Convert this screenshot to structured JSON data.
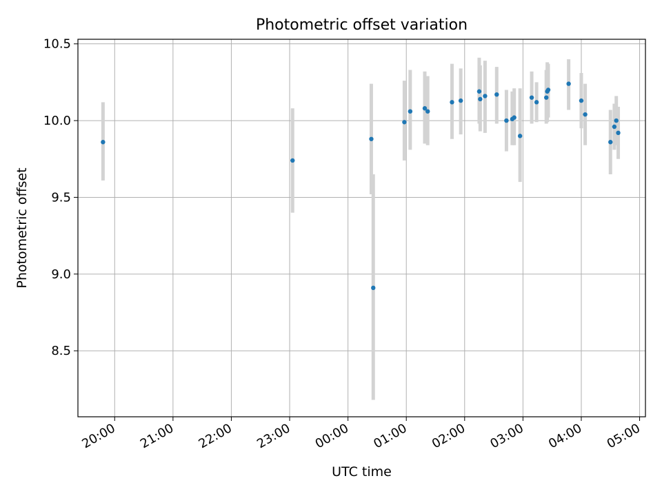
{
  "chart_data": {
    "type": "scatter",
    "title": "Photometric offset variation",
    "xlabel": "UTC time",
    "ylabel": "Photometric offset",
    "x_ticks": [
      "20:00",
      "21:00",
      "22:00",
      "23:00",
      "00:00",
      "01:00",
      "02:00",
      "03:00",
      "04:00",
      "05:00"
    ],
    "y_ticks": [
      "8.5",
      "9.0",
      "9.5",
      "10.0",
      "10.5"
    ],
    "xlim_hours": [
      19.37,
      29.1
    ],
    "ylim": [
      8.07,
      10.53
    ],
    "grid": true,
    "colors": {
      "points": "#1f77b4",
      "errorbars": "#d3d3d3",
      "grid": "#b0b0b0"
    },
    "points": [
      {
        "time": "19:48",
        "y": 9.86,
        "err_low": 9.61,
        "err_high": 10.12
      },
      {
        "time": "23:03",
        "y": 9.74,
        "err_low": 9.4,
        "err_high": 10.08
      },
      {
        "time": "00:24",
        "y": 9.88,
        "err_low": 9.52,
        "err_high": 10.24
      },
      {
        "time": "00:26",
        "y": 8.91,
        "err_low": 8.18,
        "err_high": 9.65
      },
      {
        "time": "00:58",
        "y": 9.99,
        "err_low": 9.74,
        "err_high": 10.26
      },
      {
        "time": "01:04",
        "y": 10.06,
        "err_low": 9.81,
        "err_high": 10.33
      },
      {
        "time": "01:19",
        "y": 10.08,
        "err_low": 9.85,
        "err_high": 10.32
      },
      {
        "time": "01:22",
        "y": 10.06,
        "err_low": 9.84,
        "err_high": 10.29
      },
      {
        "time": "01:47",
        "y": 10.12,
        "err_low": 9.88,
        "err_high": 10.37
      },
      {
        "time": "01:56",
        "y": 10.13,
        "err_low": 9.91,
        "err_high": 10.34
      },
      {
        "time": "02:15",
        "y": 10.19,
        "err_low": 9.98,
        "err_high": 10.41
      },
      {
        "time": "02:16",
        "y": 10.14,
        "err_low": 9.93,
        "err_high": 10.36
      },
      {
        "time": "02:21",
        "y": 10.16,
        "err_low": 9.92,
        "err_high": 10.39
      },
      {
        "time": "02:33",
        "y": 10.17,
        "err_low": 9.98,
        "err_high": 10.35
      },
      {
        "time": "02:43",
        "y": 10.0,
        "err_low": 9.8,
        "err_high": 10.2
      },
      {
        "time": "02:49",
        "y": 10.01,
        "err_low": 9.84,
        "err_high": 10.19
      },
      {
        "time": "02:51",
        "y": 10.02,
        "err_low": 9.84,
        "err_high": 10.21
      },
      {
        "time": "02:57",
        "y": 9.9,
        "err_low": 9.6,
        "err_high": 10.21
      },
      {
        "time": "03:09",
        "y": 10.15,
        "err_low": 9.98,
        "err_high": 10.32
      },
      {
        "time": "03:14",
        "y": 10.12,
        "err_low": 9.99,
        "err_high": 10.25
      },
      {
        "time": "03:24",
        "y": 10.15,
        "err_low": 9.98,
        "err_high": 10.33
      },
      {
        "time": "03:25",
        "y": 10.19,
        "err_low": 9.99,
        "err_high": 10.38
      },
      {
        "time": "03:26",
        "y": 10.2,
        "err_low": 10.02,
        "err_high": 10.37
      },
      {
        "time": "03:47",
        "y": 10.24,
        "err_low": 10.07,
        "err_high": 10.4
      },
      {
        "time": "04:00",
        "y": 10.13,
        "err_low": 9.95,
        "err_high": 10.31
      },
      {
        "time": "04:04",
        "y": 10.04,
        "err_low": 9.84,
        "err_high": 10.24
      },
      {
        "time": "04:30",
        "y": 9.86,
        "err_low": 9.65,
        "err_high": 10.07
      },
      {
        "time": "04:34",
        "y": 9.96,
        "err_low": 9.81,
        "err_high": 10.11
      },
      {
        "time": "04:36",
        "y": 10.0,
        "err_low": 9.84,
        "err_high": 10.16
      },
      {
        "time": "04:38",
        "y": 9.92,
        "err_low": 9.75,
        "err_high": 10.09
      }
    ]
  }
}
